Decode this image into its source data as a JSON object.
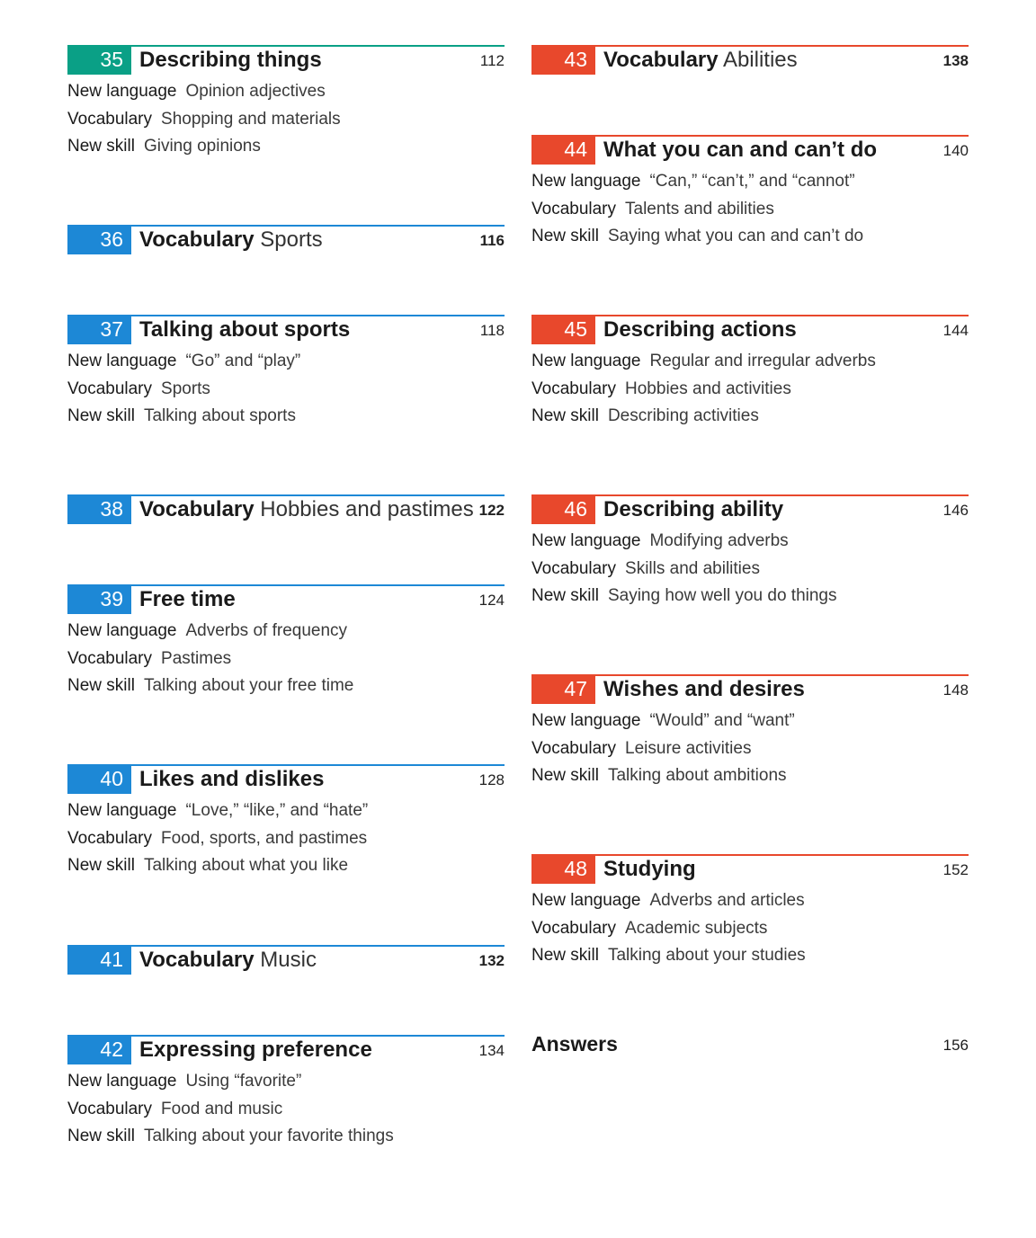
{
  "colors": {
    "teal": "#0aa086",
    "blue": "#1d88d6",
    "red": "#e8482c"
  },
  "labels": {
    "new_language": "New language",
    "vocabulary": "Vocabulary",
    "new_skill": "New skill"
  },
  "left": [
    {
      "num": "35",
      "title": "Describing things",
      "title_light": "",
      "page": "112",
      "new_language": "Opinion adjectives",
      "vocabulary": "Shopping and materials",
      "new_skill": "Giving opinions"
    },
    {
      "num": "36",
      "title": "Vocabulary",
      "title_light": "Sports",
      "page": "116"
    },
    {
      "num": "37",
      "title": "Talking about sports",
      "title_light": "",
      "page": "118",
      "new_language": "“Go” and “play”",
      "vocabulary": "Sports",
      "new_skill": "Talking about sports"
    },
    {
      "num": "38",
      "title": "Vocabulary",
      "title_light": "Hobbies and pastimes",
      "page": "122"
    },
    {
      "num": "39",
      "title": "Free time",
      "title_light": "",
      "page": "124",
      "new_language": "Adverbs of frequency",
      "vocabulary": "Pastimes",
      "new_skill": "Talking about your free time"
    },
    {
      "num": "40",
      "title": "Likes and dislikes",
      "title_light": "",
      "page": "128",
      "new_language": "“Love,” “like,” and “hate”",
      "vocabulary": "Food, sports, and pastimes",
      "new_skill": "Talking about what you like"
    },
    {
      "num": "41",
      "title": "Vocabulary",
      "title_light": "Music",
      "page": "132"
    },
    {
      "num": "42",
      "title": "Expressing preference",
      "title_light": "",
      "page": "134",
      "new_language": "Using “favorite”",
      "vocabulary": "Food and music",
      "new_skill": "Talking about your favorite things"
    }
  ],
  "right": [
    {
      "num": "43",
      "title": "Vocabulary",
      "title_light": "Abilities",
      "page": "138"
    },
    {
      "num": "44",
      "title": "What you can and can’t do",
      "title_light": "",
      "page": "140",
      "new_language": "“Can,” “can’t,” and “cannot”",
      "vocabulary": "Talents and abilities",
      "new_skill": "Saying what you can and can’t do"
    },
    {
      "num": "45",
      "title": "Describing actions",
      "title_light": "",
      "page": "144",
      "new_language": "Regular and irregular adverbs",
      "vocabulary": "Hobbies and activities",
      "new_skill": "Describing activities"
    },
    {
      "num": "46",
      "title": "Describing ability",
      "title_light": "",
      "page": "146",
      "new_language": "Modifying adverbs",
      "vocabulary": "Skills and abilities",
      "new_skill": "Saying how well you do things"
    },
    {
      "num": "47",
      "title": "Wishes and desires",
      "title_light": "",
      "page": "148",
      "new_language": "“Would” and “want”",
      "vocabulary": "Leisure activities",
      "new_skill": "Talking about ambitions"
    },
    {
      "num": "48",
      "title": "Studying",
      "title_light": "",
      "page": "152",
      "new_language": "Adverbs and articles",
      "vocabulary": "Academic subjects",
      "new_skill": "Talking about your studies"
    }
  ],
  "answers": {
    "title": "Answers",
    "page": "156"
  }
}
